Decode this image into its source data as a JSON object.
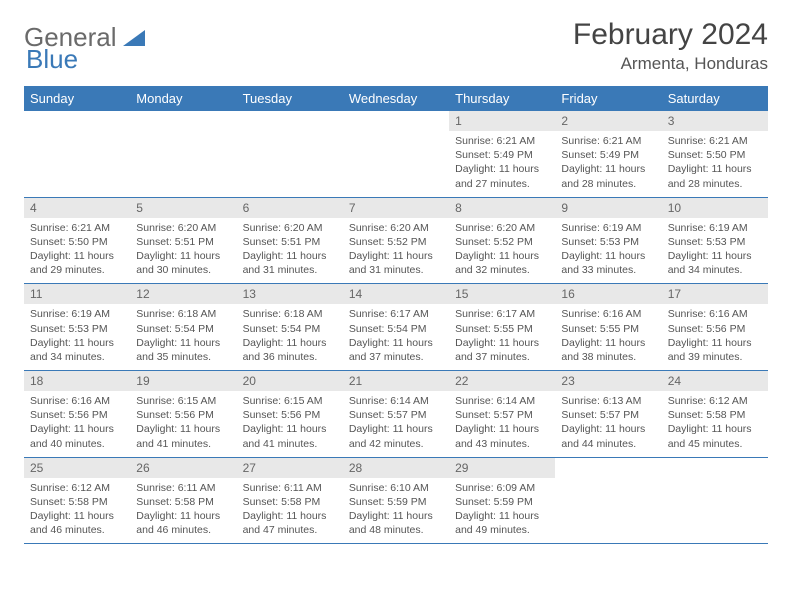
{
  "logo": {
    "text1": "General",
    "text2": "Blue"
  },
  "title": "February 2024",
  "location": "Armenta, Honduras",
  "colors": {
    "header_bg": "#3a79b7",
    "daynum_bg": "#e8e8e8",
    "border": "#3a79b7",
    "text": "#555555"
  },
  "day_headers": [
    "Sunday",
    "Monday",
    "Tuesday",
    "Wednesday",
    "Thursday",
    "Friday",
    "Saturday"
  ],
  "weeks": [
    {
      "nums": [
        "",
        "",
        "",
        "",
        "1",
        "2",
        "3"
      ],
      "cells": [
        null,
        null,
        null,
        null,
        {
          "sunrise": "Sunrise: 6:21 AM",
          "sunset": "Sunset: 5:49 PM",
          "day1": "Daylight: 11 hours",
          "day2": "and 27 minutes."
        },
        {
          "sunrise": "Sunrise: 6:21 AM",
          "sunset": "Sunset: 5:49 PM",
          "day1": "Daylight: 11 hours",
          "day2": "and 28 minutes."
        },
        {
          "sunrise": "Sunrise: 6:21 AM",
          "sunset": "Sunset: 5:50 PM",
          "day1": "Daylight: 11 hours",
          "day2": "and 28 minutes."
        }
      ]
    },
    {
      "nums": [
        "4",
        "5",
        "6",
        "7",
        "8",
        "9",
        "10"
      ],
      "cells": [
        {
          "sunrise": "Sunrise: 6:21 AM",
          "sunset": "Sunset: 5:50 PM",
          "day1": "Daylight: 11 hours",
          "day2": "and 29 minutes."
        },
        {
          "sunrise": "Sunrise: 6:20 AM",
          "sunset": "Sunset: 5:51 PM",
          "day1": "Daylight: 11 hours",
          "day2": "and 30 minutes."
        },
        {
          "sunrise": "Sunrise: 6:20 AM",
          "sunset": "Sunset: 5:51 PM",
          "day1": "Daylight: 11 hours",
          "day2": "and 31 minutes."
        },
        {
          "sunrise": "Sunrise: 6:20 AM",
          "sunset": "Sunset: 5:52 PM",
          "day1": "Daylight: 11 hours",
          "day2": "and 31 minutes."
        },
        {
          "sunrise": "Sunrise: 6:20 AM",
          "sunset": "Sunset: 5:52 PM",
          "day1": "Daylight: 11 hours",
          "day2": "and 32 minutes."
        },
        {
          "sunrise": "Sunrise: 6:19 AM",
          "sunset": "Sunset: 5:53 PM",
          "day1": "Daylight: 11 hours",
          "day2": "and 33 minutes."
        },
        {
          "sunrise": "Sunrise: 6:19 AM",
          "sunset": "Sunset: 5:53 PM",
          "day1": "Daylight: 11 hours",
          "day2": "and 34 minutes."
        }
      ]
    },
    {
      "nums": [
        "11",
        "12",
        "13",
        "14",
        "15",
        "16",
        "17"
      ],
      "cells": [
        {
          "sunrise": "Sunrise: 6:19 AM",
          "sunset": "Sunset: 5:53 PM",
          "day1": "Daylight: 11 hours",
          "day2": "and 34 minutes."
        },
        {
          "sunrise": "Sunrise: 6:18 AM",
          "sunset": "Sunset: 5:54 PM",
          "day1": "Daylight: 11 hours",
          "day2": "and 35 minutes."
        },
        {
          "sunrise": "Sunrise: 6:18 AM",
          "sunset": "Sunset: 5:54 PM",
          "day1": "Daylight: 11 hours",
          "day2": "and 36 minutes."
        },
        {
          "sunrise": "Sunrise: 6:17 AM",
          "sunset": "Sunset: 5:54 PM",
          "day1": "Daylight: 11 hours",
          "day2": "and 37 minutes."
        },
        {
          "sunrise": "Sunrise: 6:17 AM",
          "sunset": "Sunset: 5:55 PM",
          "day1": "Daylight: 11 hours",
          "day2": "and 37 minutes."
        },
        {
          "sunrise": "Sunrise: 6:16 AM",
          "sunset": "Sunset: 5:55 PM",
          "day1": "Daylight: 11 hours",
          "day2": "and 38 minutes."
        },
        {
          "sunrise": "Sunrise: 6:16 AM",
          "sunset": "Sunset: 5:56 PM",
          "day1": "Daylight: 11 hours",
          "day2": "and 39 minutes."
        }
      ]
    },
    {
      "nums": [
        "18",
        "19",
        "20",
        "21",
        "22",
        "23",
        "24"
      ],
      "cells": [
        {
          "sunrise": "Sunrise: 6:16 AM",
          "sunset": "Sunset: 5:56 PM",
          "day1": "Daylight: 11 hours",
          "day2": "and 40 minutes."
        },
        {
          "sunrise": "Sunrise: 6:15 AM",
          "sunset": "Sunset: 5:56 PM",
          "day1": "Daylight: 11 hours",
          "day2": "and 41 minutes."
        },
        {
          "sunrise": "Sunrise: 6:15 AM",
          "sunset": "Sunset: 5:56 PM",
          "day1": "Daylight: 11 hours",
          "day2": "and 41 minutes."
        },
        {
          "sunrise": "Sunrise: 6:14 AM",
          "sunset": "Sunset: 5:57 PM",
          "day1": "Daylight: 11 hours",
          "day2": "and 42 minutes."
        },
        {
          "sunrise": "Sunrise: 6:14 AM",
          "sunset": "Sunset: 5:57 PM",
          "day1": "Daylight: 11 hours",
          "day2": "and 43 minutes."
        },
        {
          "sunrise": "Sunrise: 6:13 AM",
          "sunset": "Sunset: 5:57 PM",
          "day1": "Daylight: 11 hours",
          "day2": "and 44 minutes."
        },
        {
          "sunrise": "Sunrise: 6:12 AM",
          "sunset": "Sunset: 5:58 PM",
          "day1": "Daylight: 11 hours",
          "day2": "and 45 minutes."
        }
      ]
    },
    {
      "nums": [
        "25",
        "26",
        "27",
        "28",
        "29",
        "",
        ""
      ],
      "cells": [
        {
          "sunrise": "Sunrise: 6:12 AM",
          "sunset": "Sunset: 5:58 PM",
          "day1": "Daylight: 11 hours",
          "day2": "and 46 minutes."
        },
        {
          "sunrise": "Sunrise: 6:11 AM",
          "sunset": "Sunset: 5:58 PM",
          "day1": "Daylight: 11 hours",
          "day2": "and 46 minutes."
        },
        {
          "sunrise": "Sunrise: 6:11 AM",
          "sunset": "Sunset: 5:58 PM",
          "day1": "Daylight: 11 hours",
          "day2": "and 47 minutes."
        },
        {
          "sunrise": "Sunrise: 6:10 AM",
          "sunset": "Sunset: 5:59 PM",
          "day1": "Daylight: 11 hours",
          "day2": "and 48 minutes."
        },
        {
          "sunrise": "Sunrise: 6:09 AM",
          "sunset": "Sunset: 5:59 PM",
          "day1": "Daylight: 11 hours",
          "day2": "and 49 minutes."
        },
        null,
        null
      ]
    }
  ]
}
